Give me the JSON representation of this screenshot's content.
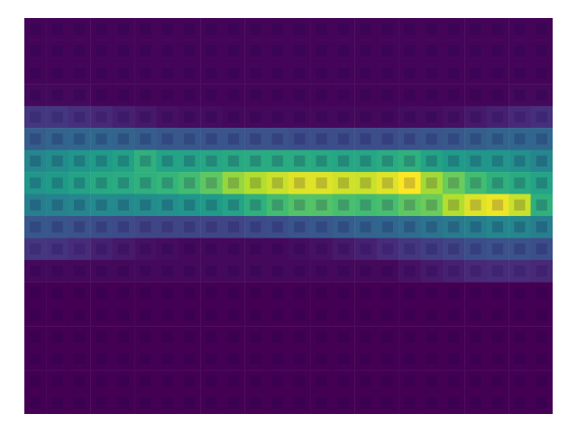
{
  "chart_data": {
    "type": "heatmap",
    "tick_labels": false,
    "cells": [
      [
        0.05,
        0.05,
        0.05,
        0.05,
        0.05,
        0.05,
        0.05,
        0.05,
        0.05,
        0.05,
        0.05,
        0.05,
        0.05,
        0.05,
        0.05,
        0.05,
        0.05,
        0.05,
        0.05,
        0.05,
        0.05,
        0.05,
        0.05,
        0.05
      ],
      [
        0.05,
        0.05,
        0.05,
        0.05,
        0.05,
        0.05,
        0.05,
        0.05,
        0.05,
        0.05,
        0.05,
        0.05,
        0.05,
        0.05,
        0.05,
        0.05,
        0.05,
        0.05,
        0.05,
        0.05,
        0.05,
        0.05,
        0.05,
        0.05
      ],
      [
        0.05,
        0.05,
        0.05,
        0.05,
        0.05,
        0.05,
        0.05,
        0.05,
        0.05,
        0.05,
        0.05,
        0.05,
        0.05,
        0.05,
        0.05,
        0.05,
        0.05,
        0.05,
        0.05,
        0.05,
        0.05,
        0.05,
        0.05,
        0.05
      ],
      [
        0.06,
        0.06,
        0.06,
        0.05,
        0.05,
        0.05,
        0.05,
        0.05,
        0.05,
        0.05,
        0.05,
        0.05,
        0.05,
        0.05,
        0.05,
        0.05,
        0.05,
        0.05,
        0.05,
        0.05,
        0.05,
        0.05,
        0.06,
        0.06
      ],
      [
        0.18,
        0.18,
        0.16,
        0.14,
        0.12,
        0.1,
        0.08,
        0.07,
        0.07,
        0.06,
        0.06,
        0.06,
        0.06,
        0.06,
        0.06,
        0.06,
        0.06,
        0.07,
        0.07,
        0.08,
        0.1,
        0.12,
        0.14,
        0.16
      ],
      [
        0.3,
        0.32,
        0.33,
        0.33,
        0.32,
        0.3,
        0.28,
        0.28,
        0.27,
        0.27,
        0.26,
        0.26,
        0.25,
        0.25,
        0.25,
        0.25,
        0.25,
        0.26,
        0.27,
        0.28,
        0.3,
        0.32,
        0.33,
        0.33
      ],
      [
        0.45,
        0.47,
        0.5,
        0.52,
        0.54,
        0.6,
        0.55,
        0.55,
        0.56,
        0.57,
        0.58,
        0.58,
        0.58,
        0.57,
        0.56,
        0.56,
        0.58,
        0.6,
        0.55,
        0.52,
        0.5,
        0.5,
        0.48,
        0.45
      ],
      [
        0.5,
        0.52,
        0.55,
        0.57,
        0.58,
        0.6,
        0.62,
        0.65,
        0.7,
        0.78,
        0.82,
        0.85,
        0.88,
        0.88,
        0.86,
        0.85,
        0.88,
        0.92,
        0.8,
        0.72,
        0.65,
        0.6,
        0.58,
        0.55
      ],
      [
        0.42,
        0.43,
        0.45,
        0.46,
        0.46,
        0.47,
        0.48,
        0.5,
        0.52,
        0.55,
        0.6,
        0.65,
        0.68,
        0.68,
        0.66,
        0.65,
        0.66,
        0.7,
        0.72,
        0.82,
        0.88,
        0.9,
        0.85,
        0.6
      ],
      [
        0.28,
        0.27,
        0.26,
        0.25,
        0.24,
        0.22,
        0.22,
        0.22,
        0.22,
        0.22,
        0.24,
        0.25,
        0.27,
        0.28,
        0.3,
        0.32,
        0.33,
        0.35,
        0.38,
        0.4,
        0.42,
        0.45,
        0.45,
        0.42
      ],
      [
        0.18,
        0.17,
        0.15,
        0.12,
        0.1,
        0.08,
        0.07,
        0.06,
        0.06,
        0.06,
        0.06,
        0.06,
        0.07,
        0.08,
        0.1,
        0.12,
        0.15,
        0.18,
        0.2,
        0.22,
        0.25,
        0.26,
        0.26,
        0.25
      ],
      [
        0.06,
        0.06,
        0.06,
        0.06,
        0.06,
        0.06,
        0.06,
        0.06,
        0.06,
        0.06,
        0.06,
        0.06,
        0.06,
        0.06,
        0.06,
        0.06,
        0.06,
        0.08,
        0.1,
        0.12,
        0.14,
        0.15,
        0.15,
        0.14
      ],
      [
        0.04,
        0.04,
        0.04,
        0.04,
        0.04,
        0.04,
        0.04,
        0.04,
        0.04,
        0.04,
        0.04,
        0.04,
        0.04,
        0.04,
        0.04,
        0.04,
        0.04,
        0.04,
        0.04,
        0.04,
        0.04,
        0.04,
        0.04,
        0.04
      ],
      [
        0.04,
        0.04,
        0.04,
        0.04,
        0.04,
        0.04,
        0.04,
        0.04,
        0.04,
        0.04,
        0.04,
        0.04,
        0.04,
        0.04,
        0.04,
        0.04,
        0.04,
        0.04,
        0.04,
        0.04,
        0.04,
        0.04,
        0.04,
        0.04
      ],
      [
        0.04,
        0.04,
        0.04,
        0.04,
        0.04,
        0.04,
        0.04,
        0.04,
        0.04,
        0.04,
        0.04,
        0.04,
        0.04,
        0.04,
        0.04,
        0.04,
        0.04,
        0.04,
        0.04,
        0.04,
        0.04,
        0.04,
        0.04,
        0.04
      ],
      [
        0.04,
        0.04,
        0.04,
        0.04,
        0.04,
        0.04,
        0.04,
        0.04,
        0.04,
        0.04,
        0.04,
        0.04,
        0.04,
        0.04,
        0.04,
        0.04,
        0.04,
        0.04,
        0.04,
        0.04,
        0.04,
        0.04,
        0.04,
        0.04
      ],
      [
        0.04,
        0.04,
        0.04,
        0.04,
        0.04,
        0.04,
        0.04,
        0.04,
        0.04,
        0.04,
        0.04,
        0.04,
        0.04,
        0.04,
        0.04,
        0.04,
        0.04,
        0.04,
        0.04,
        0.04,
        0.04,
        0.04,
        0.04,
        0.04
      ],
      [
        0.04,
        0.04,
        0.04,
        0.04,
        0.04,
        0.04,
        0.04,
        0.04,
        0.04,
        0.04,
        0.04,
        0.04,
        0.04,
        0.04,
        0.04,
        0.04,
        0.04,
        0.04,
        0.04,
        0.04,
        0.04,
        0.04,
        0.04,
        0.04
      ]
    ]
  }
}
